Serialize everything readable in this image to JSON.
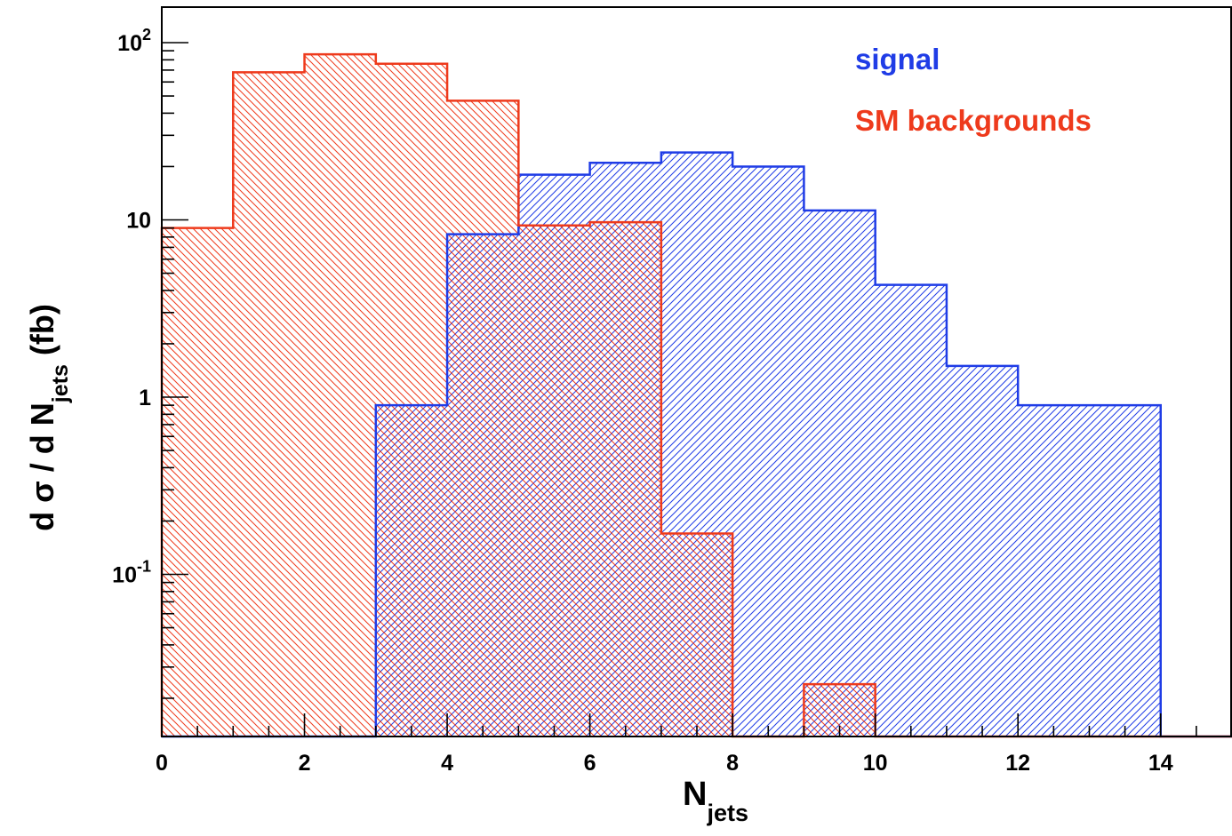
{
  "chart_data": {
    "type": "bar",
    "y_scale": "log",
    "xlim": [
      0,
      15
    ],
    "ylim": [
      0.012,
      160
    ],
    "x_ticks": [
      0,
      2,
      4,
      6,
      8,
      10,
      12,
      14
    ],
    "x_tick_labels": [
      "0",
      "2",
      "4",
      "6",
      "8",
      "10",
      "12",
      "14"
    ],
    "y_ticks": [
      {
        "value": 100,
        "base": "10",
        "exp": "2"
      },
      {
        "value": 10,
        "base": "10",
        "exp": ""
      },
      {
        "value": 1,
        "base": "1",
        "exp": ""
      },
      {
        "value": 0.1,
        "base": "10",
        "exp": "-1"
      }
    ],
    "xlabel": {
      "main": "N",
      "sub": "jets"
    },
    "ylabel": {
      "prefix": "d σ / d N",
      "sub": "jets",
      "suffix": " (fb)"
    },
    "legend_position": "top-right",
    "series": [
      {
        "name": "signal",
        "color": "#1f3ce6",
        "hatch": "forward-diagonal",
        "bin_edges": [
          0,
          1,
          2,
          3,
          4,
          5,
          6,
          7,
          8,
          9,
          10,
          11,
          12,
          13,
          14,
          15
        ],
        "values": [
          0,
          0,
          0,
          0.9,
          8.3,
          18,
          21,
          24,
          20,
          11.3,
          4.3,
          1.5,
          0.9,
          0.9,
          0
        ]
      },
      {
        "name": "SM backgrounds",
        "color": "#ee3a1c",
        "hatch": "backward-diagonal",
        "bin_edges": [
          0,
          1,
          2,
          3,
          4,
          5,
          6,
          7,
          8,
          9,
          10,
          11,
          12,
          13,
          14,
          15
        ],
        "values": [
          9,
          68,
          86,
          76,
          47,
          9.3,
          9.7,
          0.17,
          0,
          0.024,
          0,
          0,
          0,
          0,
          0
        ]
      }
    ]
  }
}
